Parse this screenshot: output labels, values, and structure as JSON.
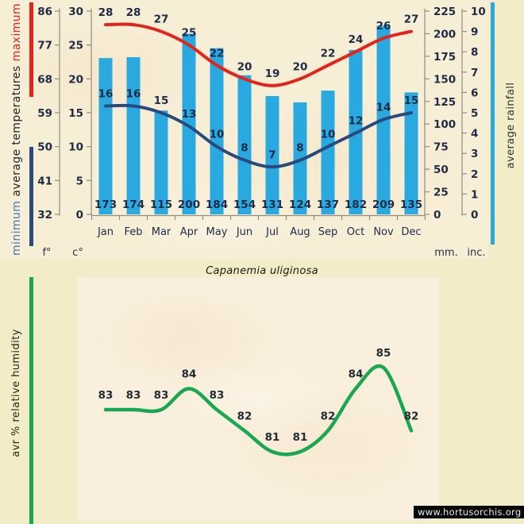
{
  "page": {
    "species_title": "Capanemia uliginosa",
    "watermark": "www.hortusorchis.org"
  },
  "top_chart": {
    "legend": {
      "maximum": "maximum",
      "middle": "average temperatures",
      "minimum": "minimum",
      "rainfall": "average rainfall"
    },
    "units": {
      "f": "f°",
      "c": "c°",
      "mm": "mm.",
      "inc": "inc."
    }
  },
  "bottom_chart": {
    "ylabel": "avr % relative humidity"
  },
  "colors": {
    "bar_blue": "#29a9e0",
    "max_red": "#e2241a",
    "min_navy": "#2a4a7e",
    "humidity_green": "#1aa751",
    "axis_gray": "#8f8c80",
    "number_text": "#1e2b47",
    "month_text": "#1c2b4a",
    "page_bg": "#f2ecc9",
    "panel_bg": "#f7eed6"
  },
  "chart_data": [
    {
      "type": "bar",
      "categories": [
        "Jan",
        "Feb",
        "Mar",
        "Apr",
        "May",
        "Jun",
        "Jul",
        "Aug",
        "Sep",
        "Oct",
        "Nov",
        "Dec"
      ],
      "series": [
        {
          "name": "maximum temperature",
          "type": "line",
          "unit": "°C",
          "color": "#e2241a",
          "values": [
            28,
            28,
            27,
            25,
            22,
            20,
            19,
            20,
            22,
            24,
            26,
            27
          ]
        },
        {
          "name": "minimum temperature",
          "type": "line",
          "unit": "°C",
          "color": "#2a4a7e",
          "values": [
            16,
            16,
            15,
            13,
            10,
            8,
            7,
            8,
            10,
            12,
            14,
            15
          ]
        },
        {
          "name": "average rainfall",
          "type": "bar",
          "unit": "mm",
          "color": "#29a9e0",
          "values": [
            173,
            174,
            115,
            200,
            184,
            154,
            131,
            124,
            137,
            182,
            209,
            135
          ]
        }
      ],
      "axes": {
        "left_fahrenheit": {
          "label": "f°",
          "ticks": [
            86,
            77,
            68,
            59,
            50,
            41,
            32
          ]
        },
        "left_celsius": {
          "label": "c°",
          "ticks": [
            30,
            25,
            20,
            15,
            10,
            5,
            0
          ],
          "range": [
            0,
            30
          ]
        },
        "right_mm": {
          "label": "mm.",
          "ticks": [
            225,
            200,
            175,
            150,
            125,
            100,
            75,
            50,
            25,
            0
          ],
          "range": [
            0,
            225
          ]
        },
        "right_inches": {
          "label": "inc.",
          "ticks": [
            10,
            9,
            8,
            7,
            6,
            5,
            4,
            3,
            2,
            1,
            0
          ],
          "range": [
            0,
            10
          ]
        }
      },
      "grid": false,
      "legend_position": "left-and-right-rotated"
    },
    {
      "type": "line",
      "title": "Capanemia uliginosa",
      "ylabel": "avr % relative humidity",
      "categories": [
        "Jan",
        "Feb",
        "Mar",
        "Apr",
        "May",
        "Jun",
        "Jul",
        "Aug",
        "Sep",
        "Oct",
        "Nov",
        "Dec"
      ],
      "values": [
        83,
        83,
        83,
        84,
        83,
        82,
        81,
        81,
        82,
        84,
        85,
        82
      ],
      "color": "#1aa751",
      "grid": false
    }
  ]
}
